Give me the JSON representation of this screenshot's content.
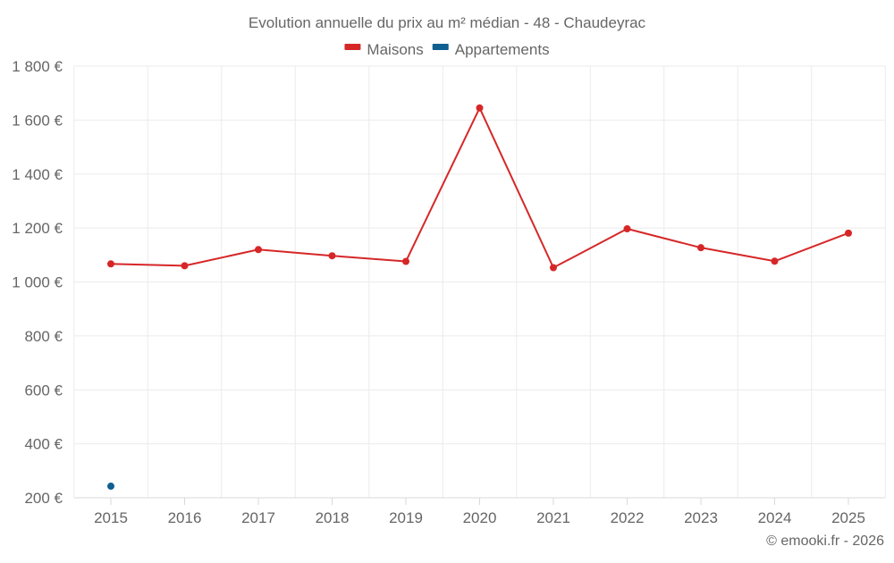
{
  "chart_data": {
    "type": "line",
    "title": "Evolution annuelle du prix au m² médian - 48 - Chaudeyrac",
    "xlabel": "",
    "ylabel": "",
    "categories": [
      "2015",
      "2016",
      "2017",
      "2018",
      "2019",
      "2020",
      "2021",
      "2022",
      "2023",
      "2024",
      "2025"
    ],
    "ylim": [
      200,
      1800
    ],
    "y_ticks": [
      200,
      400,
      600,
      800,
      1000,
      1200,
      1400,
      1600,
      1800
    ],
    "y_tick_labels": [
      "200 €",
      "400 €",
      "600 €",
      "800 €",
      "1 000 €",
      "1 200 €",
      "1 400 €",
      "1 600 €",
      "1 800 €"
    ],
    "grid": true,
    "legend_position": "top-center",
    "series": [
      {
        "name": "Maisons",
        "color": "#d62728",
        "values": [
          1067,
          1060,
          1120,
          1097,
          1076,
          1645,
          1053,
          1197,
          1127,
          1077,
          1181
        ]
      },
      {
        "name": "Appartements",
        "color": "#0f5f8f",
        "values": [
          243,
          null,
          null,
          null,
          null,
          null,
          null,
          null,
          null,
          null,
          null
        ]
      }
    ]
  },
  "footer": {
    "credit": "© emooki.fr - 2026"
  }
}
